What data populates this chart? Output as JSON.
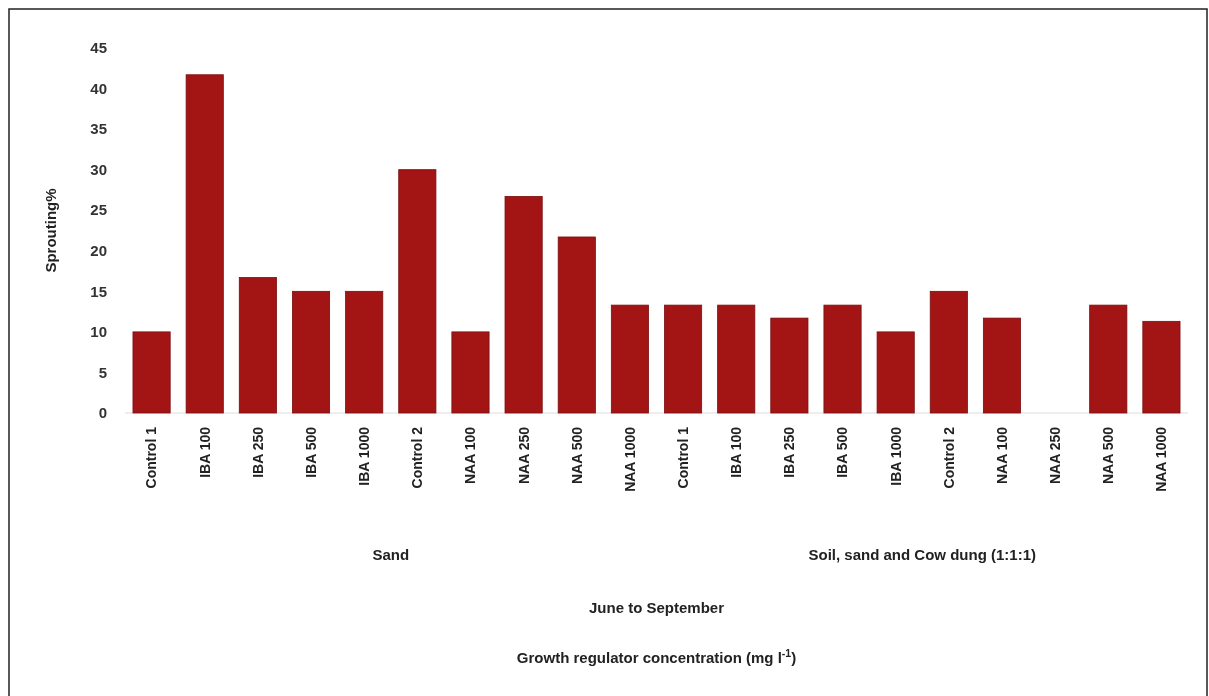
{
  "chart_data": {
    "type": "bar",
    "ylabel": "Sprouting%",
    "categories": [
      "Control 1",
      "IBA 100",
      "IBA 250",
      "IBA 500",
      "IBA 1000",
      "Control 2",
      "NAA 100",
      "NAA 250",
      "NAA 500",
      "NAA 1000",
      "Control 1",
      "IBA 100",
      "IBA 250",
      "IBA 500",
      "IBA 1000",
      "Control 2",
      "NAA 100",
      "NAA 250",
      "NAA 500",
      "NAA 1000"
    ],
    "values": [
      10,
      41.7,
      16.7,
      15,
      15,
      30,
      10,
      26.7,
      21.7,
      13.3,
      13.3,
      13.3,
      11.7,
      13.3,
      10,
      15,
      11.7,
      0,
      13.3,
      11.3
    ],
    "color": "#a31515",
    "ylim": [
      0,
      45
    ],
    "yticks": [
      0,
      5,
      10,
      15,
      20,
      25,
      30,
      35,
      40,
      45
    ],
    "grid": false,
    "annotations": [
      "Sand",
      "Soil, sand and Cow dung (1:1:1)",
      "June to September",
      "Growth regulator concentration (mg l$^{-1}$)"
    ]
  }
}
